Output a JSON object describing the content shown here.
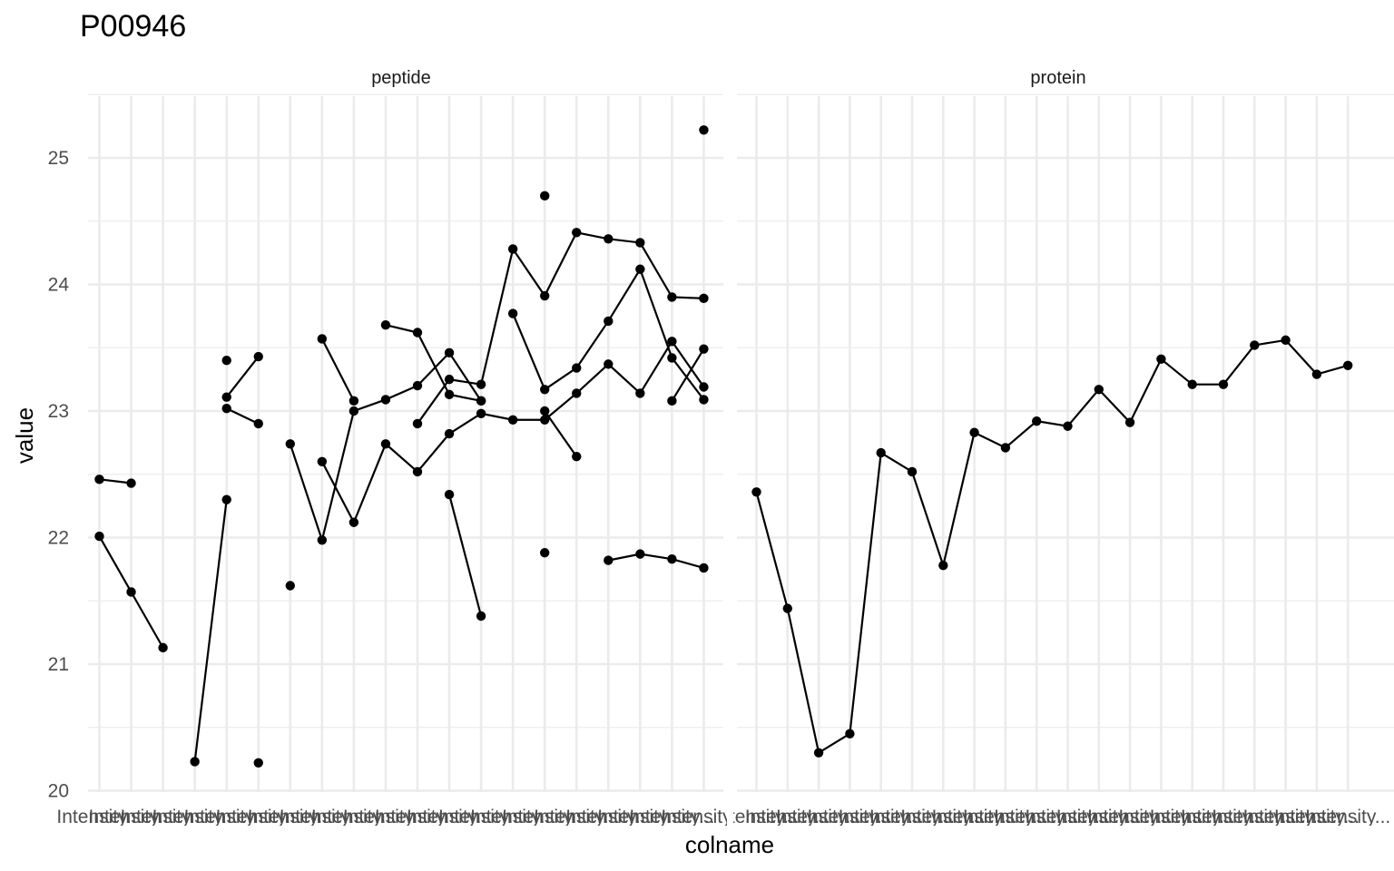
{
  "chart_data": {
    "type": "line",
    "title": "P00946",
    "xlabel": "colname",
    "ylabel": "value",
    "ylim": [
      20,
      25.5
    ],
    "yticks": [
      20,
      21,
      22,
      23,
      24,
      25
    ],
    "grid": true,
    "x_tick_label": "Intensity...",
    "panels": [
      {
        "name": "peptide",
        "n_categories": 20,
        "series": [
          {
            "values": [
              22.46,
              22.43,
              null,
              null,
              null,
              null,
              null,
              null,
              null,
              null,
              null,
              null,
              null,
              null,
              null,
              null,
              null,
              null,
              null,
              null
            ]
          },
          {
            "values": [
              22.01,
              21.57,
              21.13,
              null,
              null,
              null,
              null,
              null,
              null,
              null,
              null,
              null,
              null,
              null,
              null,
              null,
              null,
              null,
              null,
              null
            ]
          },
          {
            "values": [
              null,
              null,
              null,
              20.23,
              22.3,
              null,
              null,
              null,
              null,
              null,
              null,
              null,
              null,
              null,
              null,
              null,
              null,
              null,
              null,
              null
            ]
          },
          {
            "values": [
              null,
              null,
              null,
              null,
              23.4,
              null,
              null,
              null,
              null,
              null,
              null,
              null,
              null,
              null,
              null,
              null,
              null,
              null,
              null,
              null
            ]
          },
          {
            "values": [
              null,
              null,
              null,
              null,
              23.11,
              23.43,
              null,
              null,
              null,
              null,
              null,
              null,
              null,
              null,
              null,
              null,
              null,
              null,
              null,
              null
            ]
          },
          {
            "values": [
              null,
              null,
              null,
              null,
              23.02,
              22.9,
              null,
              null,
              null,
              null,
              null,
              null,
              null,
              null,
              null,
              null,
              null,
              null,
              null,
              null
            ]
          },
          {
            "values": [
              null,
              null,
              null,
              null,
              null,
              20.22,
              null,
              null,
              null,
              null,
              null,
              null,
              null,
              null,
              null,
              null,
              null,
              null,
              null,
              null
            ]
          },
          {
            "values": [
              null,
              null,
              null,
              null,
              null,
              null,
              22.74,
              21.98,
              23.0,
              23.09,
              23.2,
              23.46,
              23.08,
              null,
              null,
              null,
              null,
              null,
              null,
              null
            ]
          },
          {
            "values": [
              null,
              null,
              null,
              null,
              null,
              null,
              21.62,
              null,
              null,
              null,
              null,
              null,
              null,
              null,
              null,
              null,
              null,
              null,
              null,
              null
            ]
          },
          {
            "values": [
              null,
              null,
              null,
              null,
              null,
              null,
              null,
              23.57,
              23.08,
              null,
              null,
              null,
              null,
              null,
              null,
              null,
              null,
              null,
              null,
              null
            ]
          },
          {
            "values": [
              null,
              null,
              null,
              null,
              null,
              null,
              null,
              22.6,
              22.12,
              22.74,
              22.52,
              22.82,
              22.98,
              22.93,
              22.93,
              23.14,
              23.37,
              23.14,
              23.55,
              23.19
            ]
          },
          {
            "values": [
              null,
              null,
              null,
              null,
              null,
              null,
              null,
              null,
              null,
              23.68,
              23.62,
              23.13,
              23.08,
              null,
              null,
              null,
              null,
              null,
              null,
              null
            ]
          },
          {
            "values": [
              null,
              null,
              null,
              null,
              null,
              null,
              null,
              null,
              null,
              null,
              22.9,
              23.25,
              23.21,
              24.28,
              23.91,
              24.41,
              24.36,
              24.33,
              23.9,
              23.89
            ]
          },
          {
            "values": [
              null,
              null,
              null,
              null,
              null,
              null,
              null,
              null,
              null,
              null,
              null,
              22.34,
              21.38,
              null,
              null,
              null,
              null,
              null,
              null,
              null
            ]
          },
          {
            "values": [
              null,
              null,
              null,
              null,
              null,
              null,
              null,
              null,
              null,
              null,
              null,
              null,
              null,
              23.77,
              23.17,
              23.34,
              23.71,
              24.12,
              23.42,
              23.09
            ]
          },
          {
            "values": [
              null,
              null,
              null,
              null,
              null,
              null,
              null,
              null,
              null,
              null,
              null,
              null,
              null,
              null,
              24.7,
              null,
              null,
              null,
              null,
              null
            ]
          },
          {
            "values": [
              null,
              null,
              null,
              null,
              null,
              null,
              null,
              null,
              null,
              null,
              null,
              null,
              null,
              null,
              23.0,
              22.64,
              null,
              null,
              null,
              null
            ]
          },
          {
            "values": [
              null,
              null,
              null,
              null,
              null,
              null,
              null,
              null,
              null,
              null,
              null,
              null,
              null,
              null,
              21.88,
              null,
              null,
              null,
              null,
              null
            ]
          },
          {
            "values": [
              null,
              null,
              null,
              null,
              null,
              null,
              null,
              null,
              null,
              null,
              null,
              null,
              null,
              null,
              null,
              null,
              21.82,
              21.87,
              21.83,
              21.76
            ]
          },
          {
            "values": [
              null,
              null,
              null,
              null,
              null,
              null,
              null,
              null,
              null,
              null,
              null,
              null,
              null,
              null,
              null,
              null,
              null,
              null,
              23.08,
              23.49
            ]
          },
          {
            "values": [
              null,
              null,
              null,
              null,
              null,
              null,
              null,
              null,
              null,
              null,
              null,
              null,
              null,
              null,
              null,
              null,
              null,
              null,
              null,
              25.22
            ]
          }
        ]
      },
      {
        "name": "protein",
        "n_categories": 20,
        "series": [
          {
            "values": [
              22.36,
              21.44,
              20.3,
              20.45,
              22.67,
              22.52,
              21.78,
              22.83,
              22.71,
              22.92,
              22.88,
              23.17,
              22.91,
              23.41,
              23.21,
              23.21,
              23.52,
              23.56,
              23.29,
              23.36
            ]
          }
        ]
      }
    ]
  }
}
